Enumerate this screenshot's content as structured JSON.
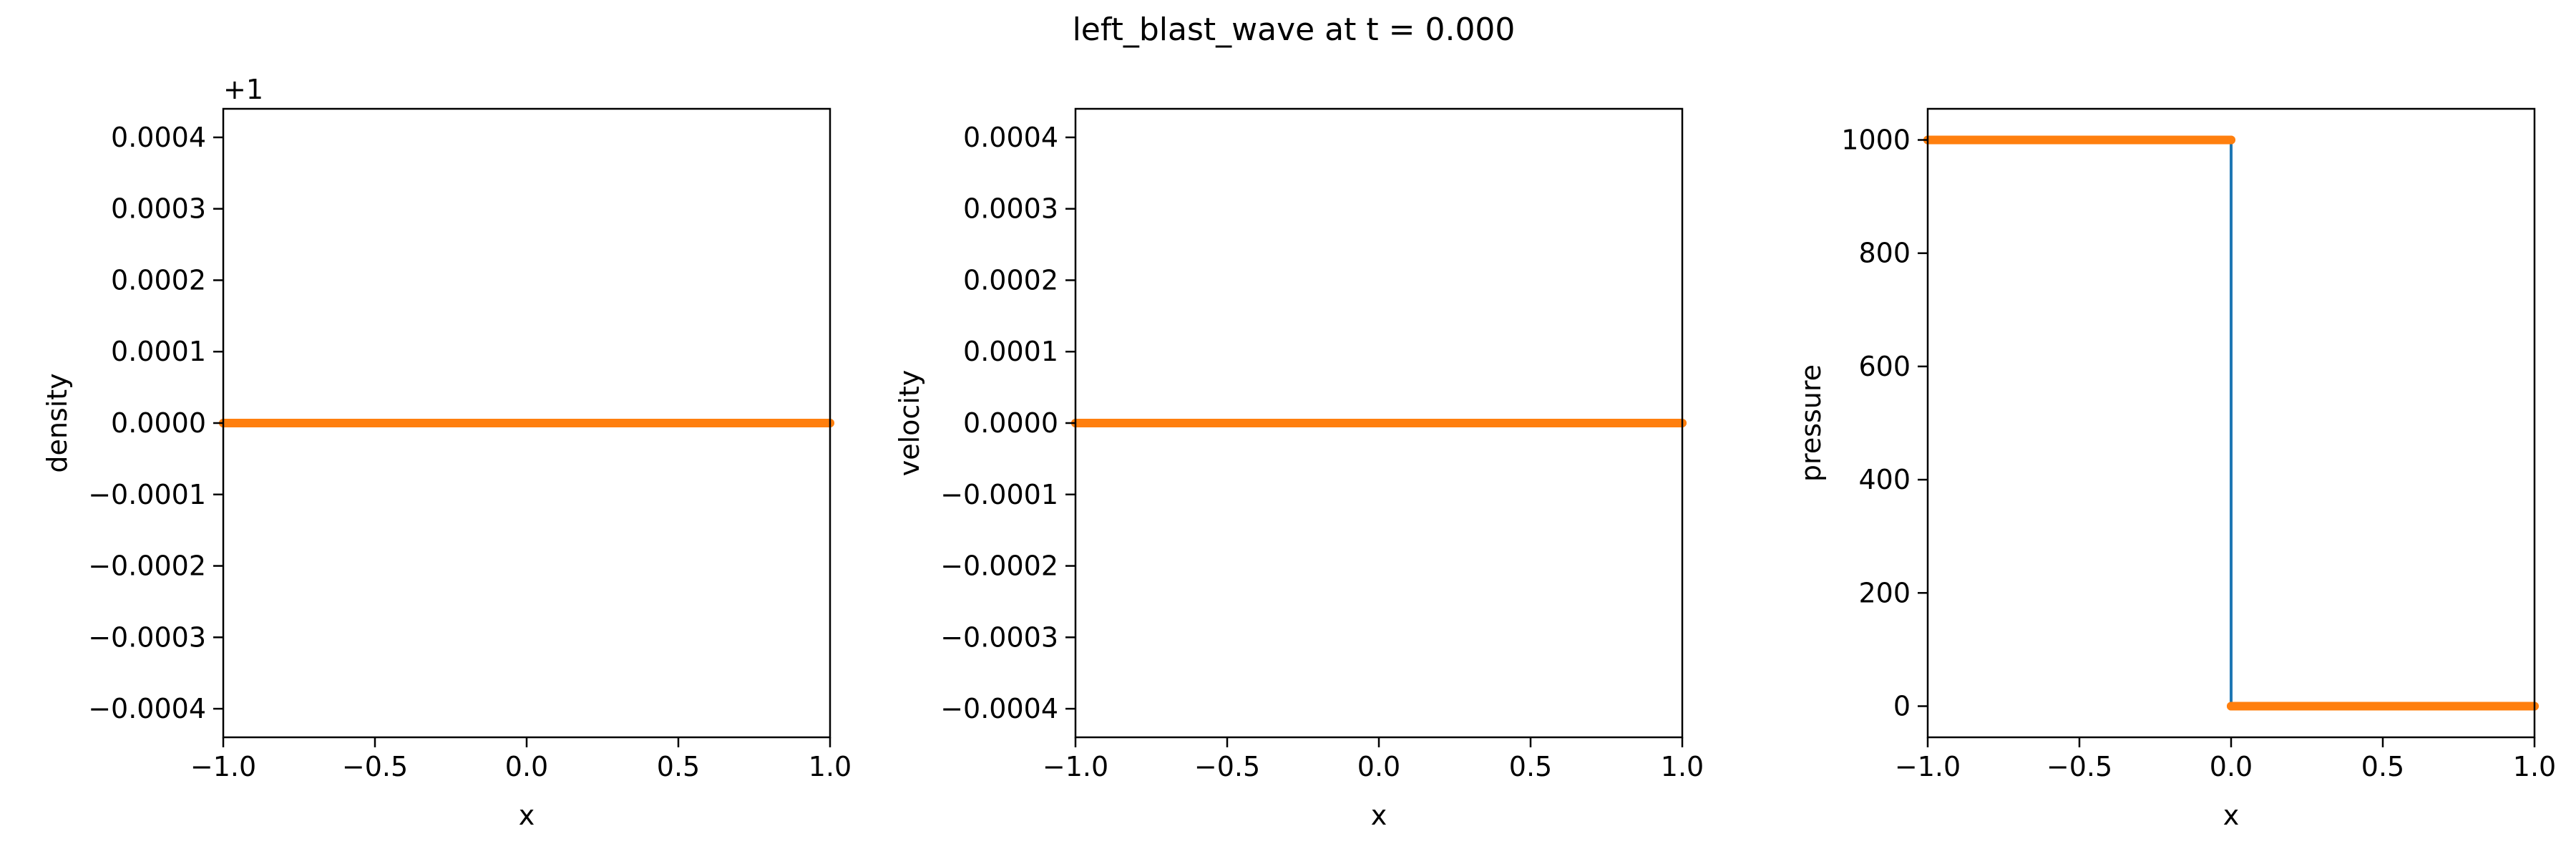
{
  "figure": {
    "title": "left_blast_wave at t = 0.000"
  },
  "colors": {
    "markers": "#ff7f0e",
    "line": "#1f77b4",
    "axes": "#000000",
    "background": "#ffffff"
  },
  "chart_data": [
    {
      "type": "line",
      "title": "",
      "xlabel": "x",
      "ylabel": "density",
      "offset_text": "+1",
      "xlim": [
        -1.0,
        1.0
      ],
      "ylim": [
        -0.00044,
        0.00044
      ],
      "xticks": [
        -1.0,
        -0.5,
        0.0,
        0.5,
        1.0
      ],
      "xtick_labels": [
        "−1.0",
        "−0.5",
        "0.0",
        "0.5",
        "1.0"
      ],
      "yticks": [
        -0.0004,
        -0.0003,
        -0.0002,
        -0.0001,
        0.0,
        0.0001,
        0.0002,
        0.0003,
        0.0004
      ],
      "ytick_labels": [
        "−0.0004",
        "−0.0003",
        "−0.0002",
        "−0.0001",
        "0.0000",
        "0.0001",
        "0.0002",
        "0.0003",
        "0.0004"
      ],
      "grid": false,
      "series": [
        {
          "style": "line",
          "x": [
            -1.0,
            1.0
          ],
          "y": [
            0.0,
            0.0
          ]
        },
        {
          "style": "markers",
          "x": [
            -1.0,
            1.0
          ],
          "y": [
            0.0,
            0.0
          ]
        }
      ]
    },
    {
      "type": "line",
      "title": "",
      "xlabel": "x",
      "ylabel": "velocity",
      "xlim": [
        -1.0,
        1.0
      ],
      "ylim": [
        -0.00044,
        0.00044
      ],
      "xticks": [
        -1.0,
        -0.5,
        0.0,
        0.5,
        1.0
      ],
      "xtick_labels": [
        "−1.0",
        "−0.5",
        "0.0",
        "0.5",
        "1.0"
      ],
      "yticks": [
        -0.0004,
        -0.0003,
        -0.0002,
        -0.0001,
        0.0,
        0.0001,
        0.0002,
        0.0003,
        0.0004
      ],
      "ytick_labels": [
        "−0.0004",
        "−0.0003",
        "−0.0002",
        "−0.0001",
        "0.0000",
        "0.0001",
        "0.0002",
        "0.0003",
        "0.0004"
      ],
      "grid": false,
      "series": [
        {
          "style": "line",
          "x": [
            -1.0,
            1.0
          ],
          "y": [
            0.0,
            0.0
          ]
        },
        {
          "style": "markers",
          "x": [
            -1.0,
            1.0
          ],
          "y": [
            0.0,
            0.0
          ]
        }
      ]
    },
    {
      "type": "line",
      "title": "",
      "xlabel": "x",
      "ylabel": "pressure",
      "xlim": [
        -1.0,
        1.0
      ],
      "ylim": [
        -55,
        1055
      ],
      "xticks": [
        -1.0,
        -0.5,
        0.0,
        0.5,
        1.0
      ],
      "xtick_labels": [
        "−1.0",
        "−0.5",
        "0.0",
        "0.5",
        "1.0"
      ],
      "yticks": [
        0,
        200,
        400,
        600,
        800,
        1000
      ],
      "ytick_labels": [
        "0",
        "200",
        "400",
        "600",
        "800",
        "1000"
      ],
      "grid": false,
      "series": [
        {
          "style": "line",
          "x": [
            -1.0,
            0.0,
            0.0,
            1.0
          ],
          "y": [
            1000,
            1000,
            0.01,
            0.01
          ]
        },
        {
          "style": "markers",
          "x": [
            -1.0,
            0.0,
            0.0,
            1.0
          ],
          "y": [
            1000,
            1000,
            0.01,
            0.01
          ]
        }
      ]
    }
  ]
}
